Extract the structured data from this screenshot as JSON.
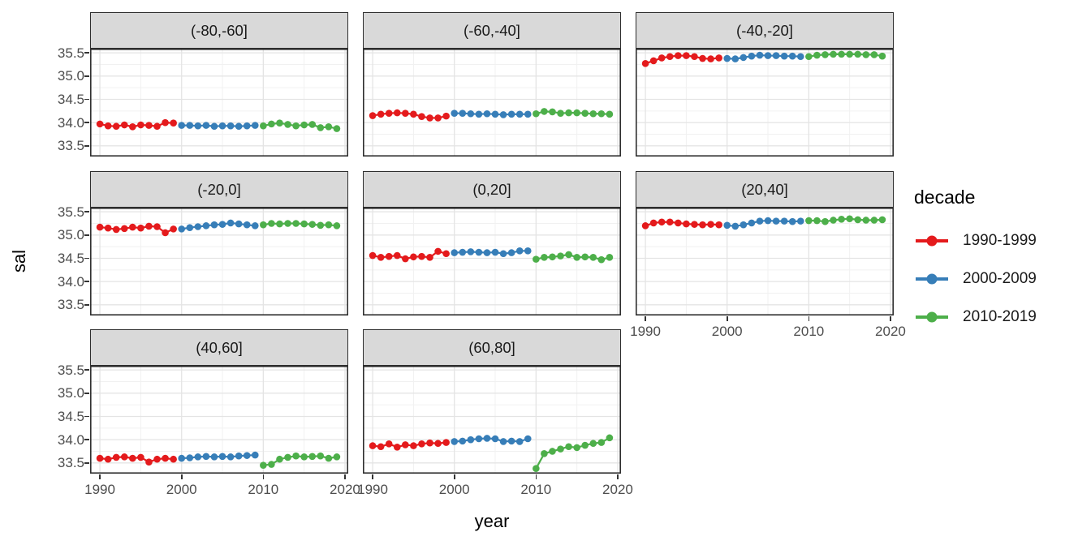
{
  "chart_data": {
    "type": "line",
    "title": "",
    "xlabel": "year",
    "ylabel": "sal",
    "x_ticks": [
      1990,
      2000,
      2010,
      2020
    ],
    "x_minor_ticks": [
      1995,
      2005,
      2015
    ],
    "y_ticks": [
      33.5,
      34.0,
      34.5,
      35.0,
      35.5
    ],
    "y_minor_ticks": [
      33.75,
      34.25,
      34.75,
      35.25
    ],
    "xlim": [
      1988.8,
      2020.4
    ],
    "ylim": [
      33.27,
      35.59
    ],
    "grid": true,
    "point_shape": "circle",
    "legend": {
      "title": "decade",
      "position": "right",
      "entries": [
        {
          "label": "1990-1999",
          "color": "#E41A1C"
        },
        {
          "label": "2000-2009",
          "color": "#377EB8"
        },
        {
          "label": "2010-2019",
          "color": "#4DAF4A"
        }
      ]
    },
    "facets": [
      {
        "label": "(-80,-60]",
        "series": [
          {
            "name": "1990-1999",
            "color": "#E41A1C",
            "start_year": 1990,
            "values": [
              33.97,
              33.93,
              33.92,
              33.95,
              33.91,
              33.95,
              33.94,
              33.92,
              34.0,
              33.99
            ]
          },
          {
            "name": "2000-2009",
            "color": "#377EB8",
            "start_year": 2000,
            "values": [
              33.94,
              33.94,
              33.93,
              33.94,
              33.92,
              33.93,
              33.93,
              33.92,
              33.93,
              33.94
            ]
          },
          {
            "name": "2010-2019",
            "color": "#4DAF4A",
            "start_year": 2010,
            "values": [
              33.93,
              33.97,
              33.99,
              33.96,
              33.93,
              33.95,
              33.96,
              33.89,
              33.91,
              33.87
            ]
          }
        ]
      },
      {
        "label": "(-60,-40]",
        "series": [
          {
            "name": "1990-1999",
            "color": "#E41A1C",
            "start_year": 1990,
            "values": [
              34.15,
              34.18,
              34.2,
              34.21,
              34.2,
              34.18,
              34.13,
              34.1,
              34.1,
              34.14
            ]
          },
          {
            "name": "2000-2009",
            "color": "#377EB8",
            "start_year": 2000,
            "values": [
              34.2,
              34.2,
              34.19,
              34.18,
              34.19,
              34.18,
              34.17,
              34.18,
              34.18,
              34.18
            ]
          },
          {
            "name": "2010-2019",
            "color": "#4DAF4A",
            "start_year": 2010,
            "values": [
              34.19,
              34.24,
              34.23,
              34.2,
              34.21,
              34.21,
              34.2,
              34.19,
              34.19,
              34.18
            ]
          }
        ]
      },
      {
        "label": "(-40,-20]",
        "series": [
          {
            "name": "1990-1999",
            "color": "#E41A1C",
            "start_year": 1990,
            "values": [
              35.27,
              35.33,
              35.39,
              35.42,
              35.44,
              35.44,
              35.42,
              35.38,
              35.37,
              35.39
            ]
          },
          {
            "name": "2000-2009",
            "color": "#377EB8",
            "start_year": 2000,
            "values": [
              35.38,
              35.37,
              35.4,
              35.43,
              35.45,
              35.44,
              35.44,
              35.43,
              35.43,
              35.42
            ]
          },
          {
            "name": "2010-2019",
            "color": "#4DAF4A",
            "start_year": 2010,
            "values": [
              35.42,
              35.45,
              35.46,
              35.47,
              35.47,
              35.47,
              35.47,
              35.46,
              35.46,
              35.43
            ]
          }
        ]
      },
      {
        "label": "(-20,0]",
        "series": [
          {
            "name": "1990-1999",
            "color": "#E41A1C",
            "start_year": 1990,
            "values": [
              35.17,
              35.15,
              35.12,
              35.14,
              35.17,
              35.15,
              35.19,
              35.18,
              35.05,
              35.13
            ]
          },
          {
            "name": "2000-2009",
            "color": "#377EB8",
            "start_year": 2000,
            "values": [
              35.13,
              35.16,
              35.18,
              35.2,
              35.22,
              35.23,
              35.26,
              35.24,
              35.22,
              35.2
            ]
          },
          {
            "name": "2010-2019",
            "color": "#4DAF4A",
            "start_year": 2010,
            "values": [
              35.22,
              35.25,
              35.24,
              35.25,
              35.25,
              35.24,
              35.23,
              35.21,
              35.22,
              35.2
            ]
          }
        ]
      },
      {
        "label": "(0,20]",
        "series": [
          {
            "name": "1990-1999",
            "color": "#E41A1C",
            "start_year": 1990,
            "values": [
              34.56,
              34.52,
              34.54,
              34.56,
              34.49,
              34.53,
              34.54,
              34.52,
              34.65,
              34.6
            ]
          },
          {
            "name": "2000-2009",
            "color": "#377EB8",
            "start_year": 2000,
            "values": [
              34.62,
              34.63,
              34.64,
              34.63,
              34.62,
              34.63,
              34.6,
              34.62,
              34.66,
              34.66
            ]
          },
          {
            "name": "2010-2019",
            "color": "#4DAF4A",
            "start_year": 2010,
            "values": [
              34.48,
              34.52,
              34.53,
              34.55,
              34.58,
              34.52,
              34.53,
              34.52,
              34.47,
              34.52
            ]
          }
        ]
      },
      {
        "label": "(20,40]",
        "series": [
          {
            "name": "1990-1999",
            "color": "#E41A1C",
            "start_year": 1990,
            "values": [
              35.2,
              35.26,
              35.28,
              35.28,
              35.26,
              35.24,
              35.23,
              35.22,
              35.23,
              35.22
            ]
          },
          {
            "name": "2000-2009",
            "color": "#377EB8",
            "start_year": 2000,
            "values": [
              35.21,
              35.19,
              35.22,
              35.26,
              35.3,
              35.31,
              35.3,
              35.3,
              35.29,
              35.3
            ]
          },
          {
            "name": "2010-2019",
            "color": "#4DAF4A",
            "start_year": 2010,
            "values": [
              35.31,
              35.31,
              35.29,
              35.32,
              35.34,
              35.35,
              35.33,
              35.32,
              35.32,
              35.33
            ]
          }
        ]
      },
      {
        "label": "(40,60]",
        "series": [
          {
            "name": "1990-1999",
            "color": "#E41A1C",
            "start_year": 1990,
            "values": [
              33.6,
              33.58,
              33.62,
              33.63,
              33.6,
              33.62,
              33.52,
              33.58,
              33.6,
              33.58
            ]
          },
          {
            "name": "2000-2009",
            "color": "#377EB8",
            "start_year": 2000,
            "values": [
              33.6,
              33.61,
              33.63,
              33.64,
              33.63,
              33.64,
              33.63,
              33.65,
              33.66,
              33.67
            ]
          },
          {
            "name": "2010-2019",
            "color": "#4DAF4A",
            "start_year": 2010,
            "values": [
              33.45,
              33.47,
              33.58,
              33.62,
              33.65,
              33.63,
              33.64,
              33.65,
              33.6,
              33.63
            ]
          }
        ]
      },
      {
        "label": "(60,80]",
        "series": [
          {
            "name": "1990-1999",
            "color": "#E41A1C",
            "start_year": 1990,
            "values": [
              33.87,
              33.85,
              33.91,
              33.84,
              33.89,
              33.87,
              33.91,
              33.93,
              33.92,
              33.94
            ]
          },
          {
            "name": "2000-2009",
            "color": "#377EB8",
            "start_year": 2000,
            "values": [
              33.96,
              33.97,
              34.0,
              34.02,
              34.03,
              34.02,
              33.96,
              33.97,
              33.96,
              34.02
            ]
          },
          {
            "name": "2010-2019",
            "color": "#4DAF4A",
            "start_year": 2010,
            "values": [
              33.38,
              33.7,
              33.75,
              33.8,
              33.85,
              33.83,
              33.88,
              33.92,
              33.94,
              34.04
            ]
          }
        ]
      }
    ]
  }
}
